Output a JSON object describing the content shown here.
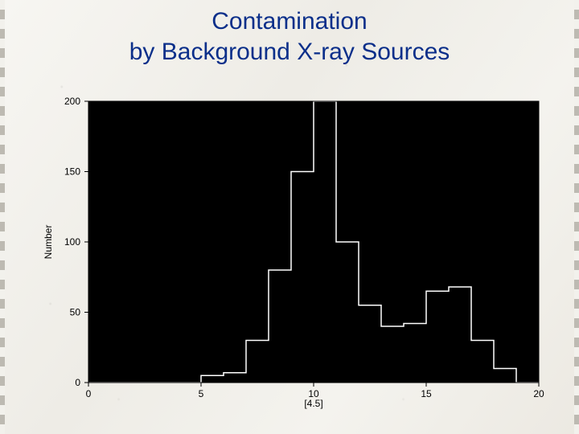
{
  "title_line1": "Contamination",
  "title_line2": "by Background X-ray Sources",
  "title_color": "#0b2f8a",
  "title_fontsize": 30,
  "chart": {
    "type": "histogram",
    "plot_bg": "#000000",
    "frame_color": "#000000",
    "line_color": "#ffffff",
    "line_width": 1.5,
    "tick_color": "#000000",
    "tick_label_color": "#000000",
    "tick_fontsize": 12,
    "axis_label_fontsize": 12,
    "xlabel": "[4.5]",
    "ylabel": "Number",
    "xlim": [
      0,
      20
    ],
    "ylim": [
      0,
      200
    ],
    "bin_width": 1,
    "bins_start": 0,
    "counts": [
      0,
      0,
      0,
      0,
      0,
      5,
      7,
      30,
      80,
      150,
      200,
      100,
      55,
      40,
      42,
      65,
      68,
      30,
      10,
      0
    ],
    "xticks": [
      0,
      5,
      10,
      15,
      20
    ],
    "yticks": [
      0,
      50,
      100,
      150,
      200
    ],
    "xtick_labels": [
      "0",
      "5",
      "10",
      "15",
      "20"
    ],
    "ytick_labels": [
      "0",
      "50",
      "100",
      "150",
      "200"
    ]
  }
}
